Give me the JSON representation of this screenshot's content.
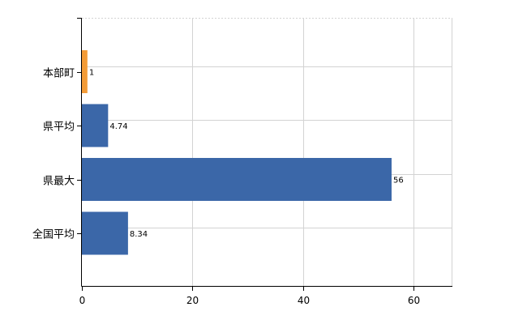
{
  "chart_data": {
    "type": "bar",
    "orientation": "horizontal",
    "categories": [
      "本部町",
      "県平均",
      "県最大",
      "全国平均"
    ],
    "values": [
      1,
      4.74,
      56,
      8.34
    ],
    "data_labels": [
      "1",
      "4.74",
      "56",
      "8.34"
    ],
    "bar_colors": [
      "#f39c38",
      "#3b67a8",
      "#3b67a8",
      "#3b67a8"
    ],
    "xlim": [
      0,
      67
    ],
    "xticks": [
      0,
      20,
      40,
      60
    ],
    "grid": true,
    "title": "",
    "xlabel": "",
    "ylabel": ""
  }
}
